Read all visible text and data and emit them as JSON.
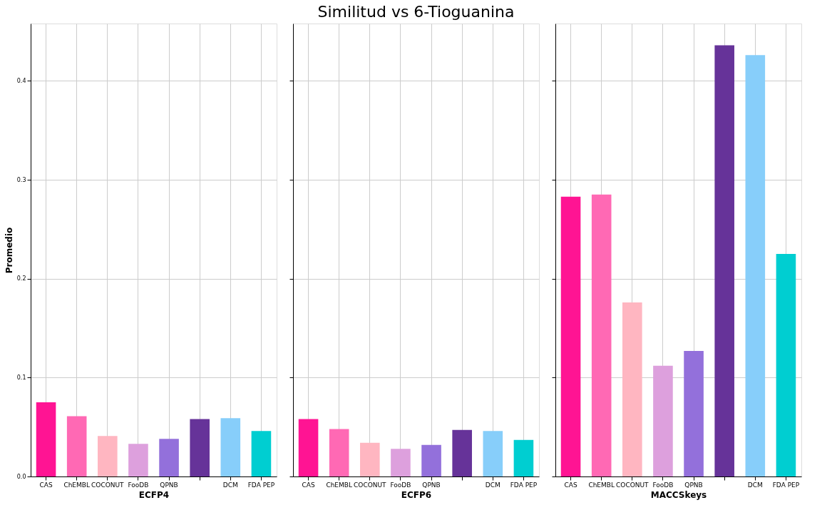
{
  "chart_data": [
    {
      "type": "bar",
      "xlabel": "ECFP4",
      "ylabel": "Promedio",
      "categories": [
        "CAS",
        "ChEMBL",
        "COCONUT",
        "FooDB",
        "QPNB",
        null,
        "DCM",
        "FDA PEP"
      ],
      "values": [
        0.075,
        0.061,
        0.041,
        0.033,
        0.038,
        0.058,
        0.059,
        0.046
      ],
      "colors": [
        "#ff1493",
        "#ff69b4",
        "#ffb6c1",
        "#dda0dd",
        "#9370db",
        "#663399",
        "#87cefa",
        "#00ced1"
      ],
      "ylim": [
        0,
        0.458
      ],
      "yticks": [
        {
          "value": 0,
          "label": "0.0"
        },
        0.1,
        0.2,
        0.3,
        0.4
      ],
      "grid": true
    },
    {
      "type": "bar",
      "title": "Similitud vs 6-Tioguanina",
      "xlabel": "ECFP6",
      "categories": [
        "CAS",
        "ChEMBL",
        "COCONUT",
        "FooDB",
        "QPNB",
        null,
        "DCM",
        "FDA PEP"
      ],
      "values": [
        0.058,
        0.048,
        0.034,
        0.028,
        0.032,
        0.047,
        0.046,
        0.037
      ],
      "colors": [
        "#ff1493",
        "#ff69b4",
        "#ffb6c1",
        "#dda0dd",
        "#9370db",
        "#663399",
        "#87cefa",
        "#00ced1"
      ],
      "ylim": [
        0,
        0.458
      ],
      "yticks": [
        {
          "value": 0,
          "label": null
        },
        {
          "value": 0.1,
          "label": null
        },
        {
          "value": 0.2,
          "label": null
        },
        {
          "value": 0.3,
          "label": null
        },
        {
          "value": 0.4,
          "label": null
        }
      ],
      "grid": true,
      "tick_labels": "x"
    },
    {
      "type": "bar",
      "xlabel": "MACCSkeys",
      "categories": [
        "CAS",
        "ChEMBL",
        "COCONUT",
        "FooDB",
        "QPNB",
        null,
        "DCM",
        "FDA PEP"
      ],
      "values": [
        0.283,
        0.285,
        0.176,
        0.112,
        0.127,
        0.436,
        0.426,
        0.225
      ],
      "colors": [
        "#ff1493",
        "#ff69b4",
        "#ffb6c1",
        "#dda0dd",
        "#9370db",
        "#663399",
        "#87cefa",
        "#00ced1"
      ],
      "ylim": [
        0,
        0.458
      ],
      "yticks": [
        {
          "value": 0,
          "label": null
        },
        {
          "value": 0.1,
          "label": null
        },
        {
          "value": 0.2,
          "label": null
        },
        {
          "value": 0.3,
          "label": null
        },
        {
          "value": 0.4,
          "label": null
        }
      ],
      "grid": true,
      "tick_labels": "x"
    }
  ]
}
